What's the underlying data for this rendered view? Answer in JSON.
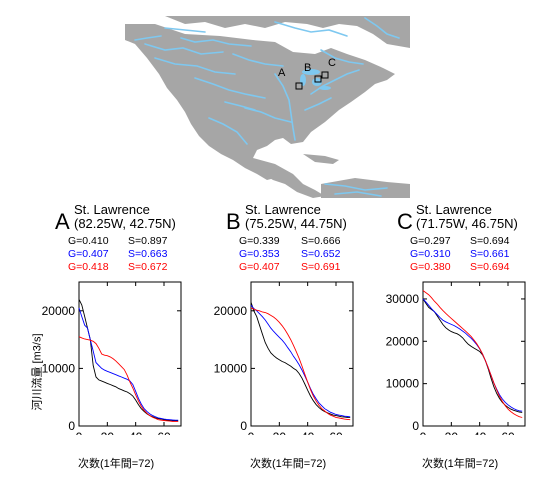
{
  "map": {
    "icon": "north-america-river-map",
    "colors": {
      "land": "#a6a6a6",
      "river": "#7ec8f0",
      "ocean": "#ffffff"
    },
    "markers": [
      "A",
      "B",
      "C"
    ]
  },
  "ylabel": "河川流量 [m3/s]",
  "colors": {
    "black": "#000000",
    "blue": "#0000ff",
    "red": "#ff0000"
  },
  "chart_data": [
    {
      "type": "line",
      "panel": "A",
      "title": "St. Lawrence",
      "subtitle": "(82.25W, 42.75N)",
      "stats": [
        {
          "g": "G=0.410",
          "s": "S=0.897",
          "color": "#000000"
        },
        {
          "g": "G=0.407",
          "s": "S=0.663",
          "color": "#0000ff"
        },
        {
          "g": "G=0.418",
          "s": "S=0.672",
          "color": "#ff0000"
        }
      ],
      "xlabel": "次数(1年間=72)",
      "xlim": [
        0,
        72
      ],
      "ylim": [
        0,
        25000
      ],
      "xticks": [
        0,
        20,
        40,
        60
      ],
      "yticks": [
        0,
        10000,
        20000
      ],
      "series": [
        {
          "color": "#000000",
          "x": [
            0,
            2,
            4,
            6,
            8,
            10,
            12,
            14,
            16,
            18,
            20,
            22,
            24,
            26,
            28,
            30,
            32,
            34,
            36,
            38,
            40,
            42,
            44,
            46,
            48,
            50,
            52,
            54,
            56,
            58,
            60,
            62,
            64,
            66,
            68,
            70
          ],
          "y": [
            22000,
            21000,
            19000,
            17000,
            15000,
            10500,
            8500,
            8000,
            7800,
            7600,
            7400,
            7200,
            7000,
            6800,
            6500,
            6300,
            6100,
            5900,
            5600,
            5200,
            4500,
            3700,
            3000,
            2500,
            2100,
            1800,
            1600,
            1400,
            1300,
            1200,
            1100,
            1000,
            950,
            900,
            900,
            900
          ]
        },
        {
          "color": "#0000ff",
          "x": [
            0,
            2,
            4,
            6,
            8,
            10,
            12,
            14,
            16,
            18,
            20,
            22,
            24,
            26,
            28,
            30,
            32,
            34,
            36,
            38,
            40,
            42,
            44,
            46,
            48,
            50,
            52,
            54,
            56,
            58,
            60,
            62,
            64,
            66,
            68,
            70
          ],
          "y": [
            20500,
            19000,
            17500,
            17000,
            15000,
            13000,
            11000,
            10500,
            10000,
            9700,
            9500,
            9300,
            9100,
            8900,
            8700,
            8500,
            8300,
            8100,
            7800,
            7200,
            6000,
            4800,
            3800,
            3000,
            2500,
            2100,
            1800,
            1600,
            1400,
            1300,
            1200,
            1150,
            1100,
            1050,
            1000,
            1000
          ]
        },
        {
          "color": "#ff0000",
          "x": [
            0,
            2,
            4,
            6,
            8,
            10,
            12,
            14,
            16,
            18,
            20,
            22,
            24,
            26,
            28,
            30,
            32,
            34,
            36,
            38,
            40,
            42,
            44,
            46,
            48,
            50,
            52,
            54,
            56,
            58,
            60,
            62,
            64,
            66,
            68,
            70
          ],
          "y": [
            15500,
            15300,
            15100,
            15000,
            14900,
            14700,
            14300,
            13500,
            12500,
            12300,
            12200,
            12000,
            11700,
            11300,
            10800,
            10300,
            9800,
            8800,
            7600,
            6600,
            5400,
            4300,
            3400,
            2700,
            2200,
            1800,
            1500,
            1300,
            1100,
            1000,
            950,
            900,
            850,
            800,
            800,
            800
          ]
        }
      ]
    },
    {
      "type": "line",
      "panel": "B",
      "title": "St. Lawrence",
      "subtitle": "(75.25W, 44.75N)",
      "stats": [
        {
          "g": "G=0.339",
          "s": "S=0.666",
          "color": "#000000"
        },
        {
          "g": "G=0.353",
          "s": "S=0.652",
          "color": "#0000ff"
        },
        {
          "g": "G=0.407",
          "s": "S=0.691",
          "color": "#ff0000"
        }
      ],
      "xlabel": "次数(1年間=72)",
      "xlim": [
        0,
        72
      ],
      "ylim": [
        0,
        25000
      ],
      "xticks": [
        0,
        20,
        40,
        60
      ],
      "yticks": [
        0,
        10000,
        20000
      ],
      "series": [
        {
          "color": "#000000",
          "x": [
            0,
            2,
            4,
            6,
            8,
            10,
            12,
            14,
            16,
            18,
            20,
            22,
            24,
            26,
            28,
            30,
            32,
            34,
            36,
            38,
            40,
            42,
            44,
            46,
            48,
            50,
            52,
            54,
            56,
            58,
            60,
            62,
            64,
            66,
            68,
            70
          ],
          "y": [
            21500,
            20000,
            19000,
            17500,
            16000,
            14500,
            13500,
            12700,
            12200,
            11800,
            11500,
            11200,
            11000,
            10700,
            10400,
            10000,
            9700,
            9100,
            8300,
            7300,
            6200,
            5200,
            4400,
            3700,
            3200,
            2800,
            2500,
            2300,
            2100,
            1900,
            1800,
            1700,
            1600,
            1550,
            1500,
            1500
          ]
        },
        {
          "color": "#0000ff",
          "x": [
            0,
            2,
            4,
            6,
            8,
            10,
            12,
            14,
            16,
            18,
            20,
            22,
            24,
            26,
            28,
            30,
            32,
            34,
            36,
            38,
            40,
            42,
            44,
            46,
            48,
            50,
            52,
            54,
            56,
            58,
            60,
            62,
            64,
            66,
            68,
            70
          ],
          "y": [
            21000,
            20400,
            20000,
            19500,
            19000,
            18400,
            17700,
            17000,
            16400,
            15900,
            15400,
            14900,
            14300,
            13600,
            12900,
            12100,
            11400,
            10600,
            9700,
            8700,
            7600,
            6500,
            5500,
            4700,
            4000,
            3500,
            3000,
            2700,
            2400,
            2200,
            2000,
            1900,
            1800,
            1700,
            1650,
            1600
          ]
        },
        {
          "color": "#ff0000",
          "x": [
            0,
            2,
            4,
            6,
            8,
            10,
            12,
            14,
            16,
            18,
            20,
            22,
            24,
            26,
            28,
            30,
            32,
            34,
            36,
            38,
            40,
            42,
            44,
            46,
            48,
            50,
            52,
            54,
            56,
            58,
            60,
            62,
            64,
            66,
            68,
            70
          ],
          "y": [
            20500,
            20300,
            20100,
            20000,
            19800,
            19700,
            19500,
            19200,
            18900,
            18500,
            18000,
            17400,
            16700,
            15900,
            15000,
            14000,
            12900,
            11700,
            10400,
            9000,
            7600,
            6300,
            5200,
            4300,
            3600,
            3000,
            2600,
            2200,
            1900,
            1700,
            1500,
            1400,
            1300,
            1200,
            1150,
            1100
          ]
        }
      ]
    },
    {
      "type": "line",
      "panel": "C",
      "title": "St. Lawrence",
      "subtitle": "(71.75W, 46.75N)",
      "stats": [
        {
          "g": "G=0.297",
          "s": "S=0.694",
          "color": "#000000"
        },
        {
          "g": "G=0.310",
          "s": "S=0.661",
          "color": "#0000ff"
        },
        {
          "g": "G=0.380",
          "s": "S=0.694",
          "color": "#ff0000"
        }
      ],
      "xlabel": "次数(1年間=72)",
      "xlim": [
        0,
        72
      ],
      "ylim": [
        0,
        34000
      ],
      "xticks": [
        0,
        20,
        40,
        60
      ],
      "yticks": [
        0,
        10000,
        20000,
        30000
      ],
      "series": [
        {
          "color": "#000000",
          "x": [
            0,
            2,
            4,
            6,
            8,
            10,
            12,
            14,
            16,
            18,
            20,
            22,
            24,
            26,
            28,
            30,
            32,
            34,
            36,
            38,
            40,
            42,
            44,
            46,
            48,
            50,
            52,
            54,
            56,
            58,
            60,
            62,
            64,
            66,
            68,
            70
          ],
          "y": [
            30000,
            29000,
            28000,
            27500,
            27000,
            26000,
            25000,
            24000,
            23200,
            22700,
            22300,
            22000,
            21800,
            21400,
            20800,
            20000,
            19300,
            18800,
            18400,
            18000,
            17600,
            16800,
            15500,
            13500,
            11300,
            9300,
            7700,
            6500,
            5600,
            4900,
            4400,
            4000,
            3700,
            3500,
            3300,
            3200
          ]
        },
        {
          "color": "#0000ff",
          "x": [
            0,
            2,
            4,
            6,
            8,
            10,
            12,
            14,
            16,
            18,
            20,
            22,
            24,
            26,
            28,
            30,
            32,
            34,
            36,
            38,
            40,
            42,
            44,
            46,
            48,
            50,
            52,
            54,
            56,
            58,
            60,
            62,
            64,
            66,
            68,
            70
          ],
          "y": [
            30000,
            29300,
            28500,
            27700,
            27000,
            26300,
            25600,
            25000,
            24600,
            24300,
            24000,
            23700,
            23300,
            22900,
            22400,
            21900,
            21300,
            20700,
            20000,
            19200,
            18200,
            17000,
            15500,
            13800,
            12000,
            10200,
            8700,
            7400,
            6400,
            5600,
            5000,
            4500,
            4100,
            3800,
            3600,
            3500
          ]
        },
        {
          "color": "#ff0000",
          "x": [
            0,
            2,
            4,
            6,
            8,
            10,
            12,
            14,
            16,
            18,
            20,
            22,
            24,
            26,
            28,
            30,
            32,
            34,
            36,
            38,
            40,
            42,
            44,
            46,
            48,
            50,
            52,
            54,
            56,
            58,
            60,
            62,
            64,
            66,
            68,
            70
          ],
          "y": [
            32000,
            31500,
            31000,
            30300,
            29500,
            28800,
            28000,
            27300,
            26600,
            26000,
            25400,
            24800,
            24200,
            23600,
            23000,
            22400,
            21800,
            21100,
            20300,
            19400,
            18300,
            17000,
            15500,
            13800,
            12000,
            10200,
            8500,
            7000,
            5800,
            4800,
            4000,
            3400,
            2900,
            2500,
            2200,
            2000
          ]
        }
      ]
    }
  ]
}
